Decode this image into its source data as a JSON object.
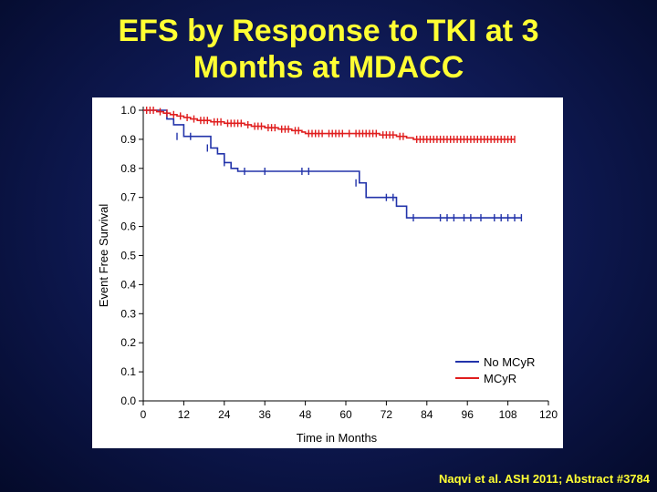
{
  "slide": {
    "title_line1": "EFS by Response to TKI at 3",
    "title_line2": "Months at MDACC",
    "citation": "Naqvi et al. ASH 2011; Abstract #3784"
  },
  "colors": {
    "no_mcyr": "#2233aa",
    "mcyr": "#e01e1e",
    "title": "#ffff33"
  },
  "chart_data": {
    "type": "line",
    "xlabel": "Time in Months",
    "ylabel": "Event Free Survival",
    "xlim": [
      0,
      120
    ],
    "ylim": [
      0,
      1.0
    ],
    "xticks": [
      0,
      12,
      24,
      36,
      48,
      60,
      72,
      84,
      96,
      108,
      120
    ],
    "yticks": [
      "0.0",
      "0.1",
      "0.2",
      "0.3",
      "0.4",
      "0.5",
      "0.6",
      "0.7",
      "0.8",
      "0.9",
      "1.0"
    ],
    "legend_position": "bottom-right",
    "grid": false,
    "series": [
      {
        "name": "No MCyR",
        "color": "#2233aa",
        "x": [
          0,
          5,
          7,
          9,
          12,
          18,
          20,
          22,
          24,
          26,
          28,
          62,
          64,
          66,
          70,
          72,
          75,
          78,
          112
        ],
        "y": [
          1.0,
          1.0,
          0.97,
          0.95,
          0.91,
          0.91,
          0.87,
          0.85,
          0.82,
          0.8,
          0.79,
          0.79,
          0.75,
          0.7,
          0.7,
          0.7,
          0.67,
          0.63,
          0.63
        ],
        "censored": [
          [
            10,
            0.91
          ],
          [
            14,
            0.91
          ],
          [
            19,
            0.87
          ],
          [
            24,
            0.82
          ],
          [
            30,
            0.79
          ],
          [
            36,
            0.79
          ],
          [
            47,
            0.79
          ],
          [
            49,
            0.79
          ],
          [
            63,
            0.75
          ],
          [
            72,
            0.7
          ],
          [
            74,
            0.7
          ],
          [
            80,
            0.63
          ],
          [
            88,
            0.63
          ],
          [
            90,
            0.63
          ],
          [
            92,
            0.63
          ],
          [
            95,
            0.63
          ],
          [
            97,
            0.63
          ],
          [
            100,
            0.63
          ],
          [
            104,
            0.63
          ],
          [
            106,
            0.63
          ],
          [
            108,
            0.63
          ],
          [
            110,
            0.63
          ],
          [
            112,
            0.63
          ]
        ]
      },
      {
        "name": "MCyR",
        "color": "#e01e1e",
        "x": [
          0,
          4,
          6,
          8,
          10,
          12,
          14,
          16,
          20,
          24,
          30,
          32,
          36,
          40,
          44,
          47,
          48,
          54,
          60,
          62,
          70,
          75,
          78,
          80,
          110
        ],
        "y": [
          1.0,
          0.995,
          0.99,
          0.985,
          0.98,
          0.975,
          0.97,
          0.965,
          0.96,
          0.955,
          0.95,
          0.945,
          0.94,
          0.935,
          0.93,
          0.925,
          0.92,
          0.92,
          0.92,
          0.92,
          0.915,
          0.91,
          0.905,
          0.9,
          0.9
        ],
        "censored": [
          [
            1,
            1.0
          ],
          [
            2,
            1.0
          ],
          [
            3,
            1.0
          ],
          [
            5,
            0.995
          ],
          [
            7,
            0.99
          ],
          [
            9,
            0.985
          ],
          [
            11,
            0.98
          ],
          [
            13,
            0.975
          ],
          [
            15,
            0.97
          ],
          [
            17,
            0.965
          ],
          [
            18,
            0.965
          ],
          [
            19,
            0.965
          ],
          [
            21,
            0.96
          ],
          [
            22,
            0.96
          ],
          [
            23,
            0.96
          ],
          [
            25,
            0.955
          ],
          [
            26,
            0.955
          ],
          [
            27,
            0.955
          ],
          [
            28,
            0.955
          ],
          [
            29,
            0.955
          ],
          [
            31,
            0.95
          ],
          [
            33,
            0.945
          ],
          [
            34,
            0.945
          ],
          [
            35,
            0.945
          ],
          [
            37,
            0.94
          ],
          [
            38,
            0.94
          ],
          [
            39,
            0.94
          ],
          [
            41,
            0.935
          ],
          [
            42,
            0.935
          ],
          [
            43,
            0.935
          ],
          [
            45,
            0.93
          ],
          [
            46,
            0.93
          ],
          [
            49,
            0.92
          ],
          [
            50,
            0.92
          ],
          [
            51,
            0.92
          ],
          [
            52,
            0.92
          ],
          [
            53,
            0.92
          ],
          [
            55,
            0.92
          ],
          [
            56,
            0.92
          ],
          [
            57,
            0.92
          ],
          [
            58,
            0.92
          ],
          [
            59,
            0.92
          ],
          [
            61,
            0.92
          ],
          [
            63,
            0.92
          ],
          [
            64,
            0.92
          ],
          [
            65,
            0.92
          ],
          [
            66,
            0.92
          ],
          [
            67,
            0.92
          ],
          [
            68,
            0.92
          ],
          [
            69,
            0.92
          ],
          [
            71,
            0.915
          ],
          [
            72,
            0.915
          ],
          [
            73,
            0.915
          ],
          [
            74,
            0.915
          ],
          [
            76,
            0.91
          ],
          [
            77,
            0.91
          ],
          [
            81,
            0.9
          ],
          [
            82,
            0.9
          ],
          [
            83,
            0.9
          ],
          [
            84,
            0.9
          ],
          [
            85,
            0.9
          ],
          [
            86,
            0.9
          ],
          [
            87,
            0.9
          ],
          [
            88,
            0.9
          ],
          [
            89,
            0.9
          ],
          [
            90,
            0.9
          ],
          [
            91,
            0.9
          ],
          [
            92,
            0.9
          ],
          [
            93,
            0.9
          ],
          [
            94,
            0.9
          ],
          [
            95,
            0.9
          ],
          [
            96,
            0.9
          ],
          [
            97,
            0.9
          ],
          [
            98,
            0.9
          ],
          [
            99,
            0.9
          ],
          [
            100,
            0.9
          ],
          [
            101,
            0.9
          ],
          [
            102,
            0.9
          ],
          [
            103,
            0.9
          ],
          [
            104,
            0.9
          ],
          [
            105,
            0.9
          ],
          [
            106,
            0.9
          ],
          [
            107,
            0.9
          ],
          [
            108,
            0.9
          ],
          [
            109,
            0.9
          ],
          [
            110,
            0.9
          ]
        ]
      }
    ]
  }
}
